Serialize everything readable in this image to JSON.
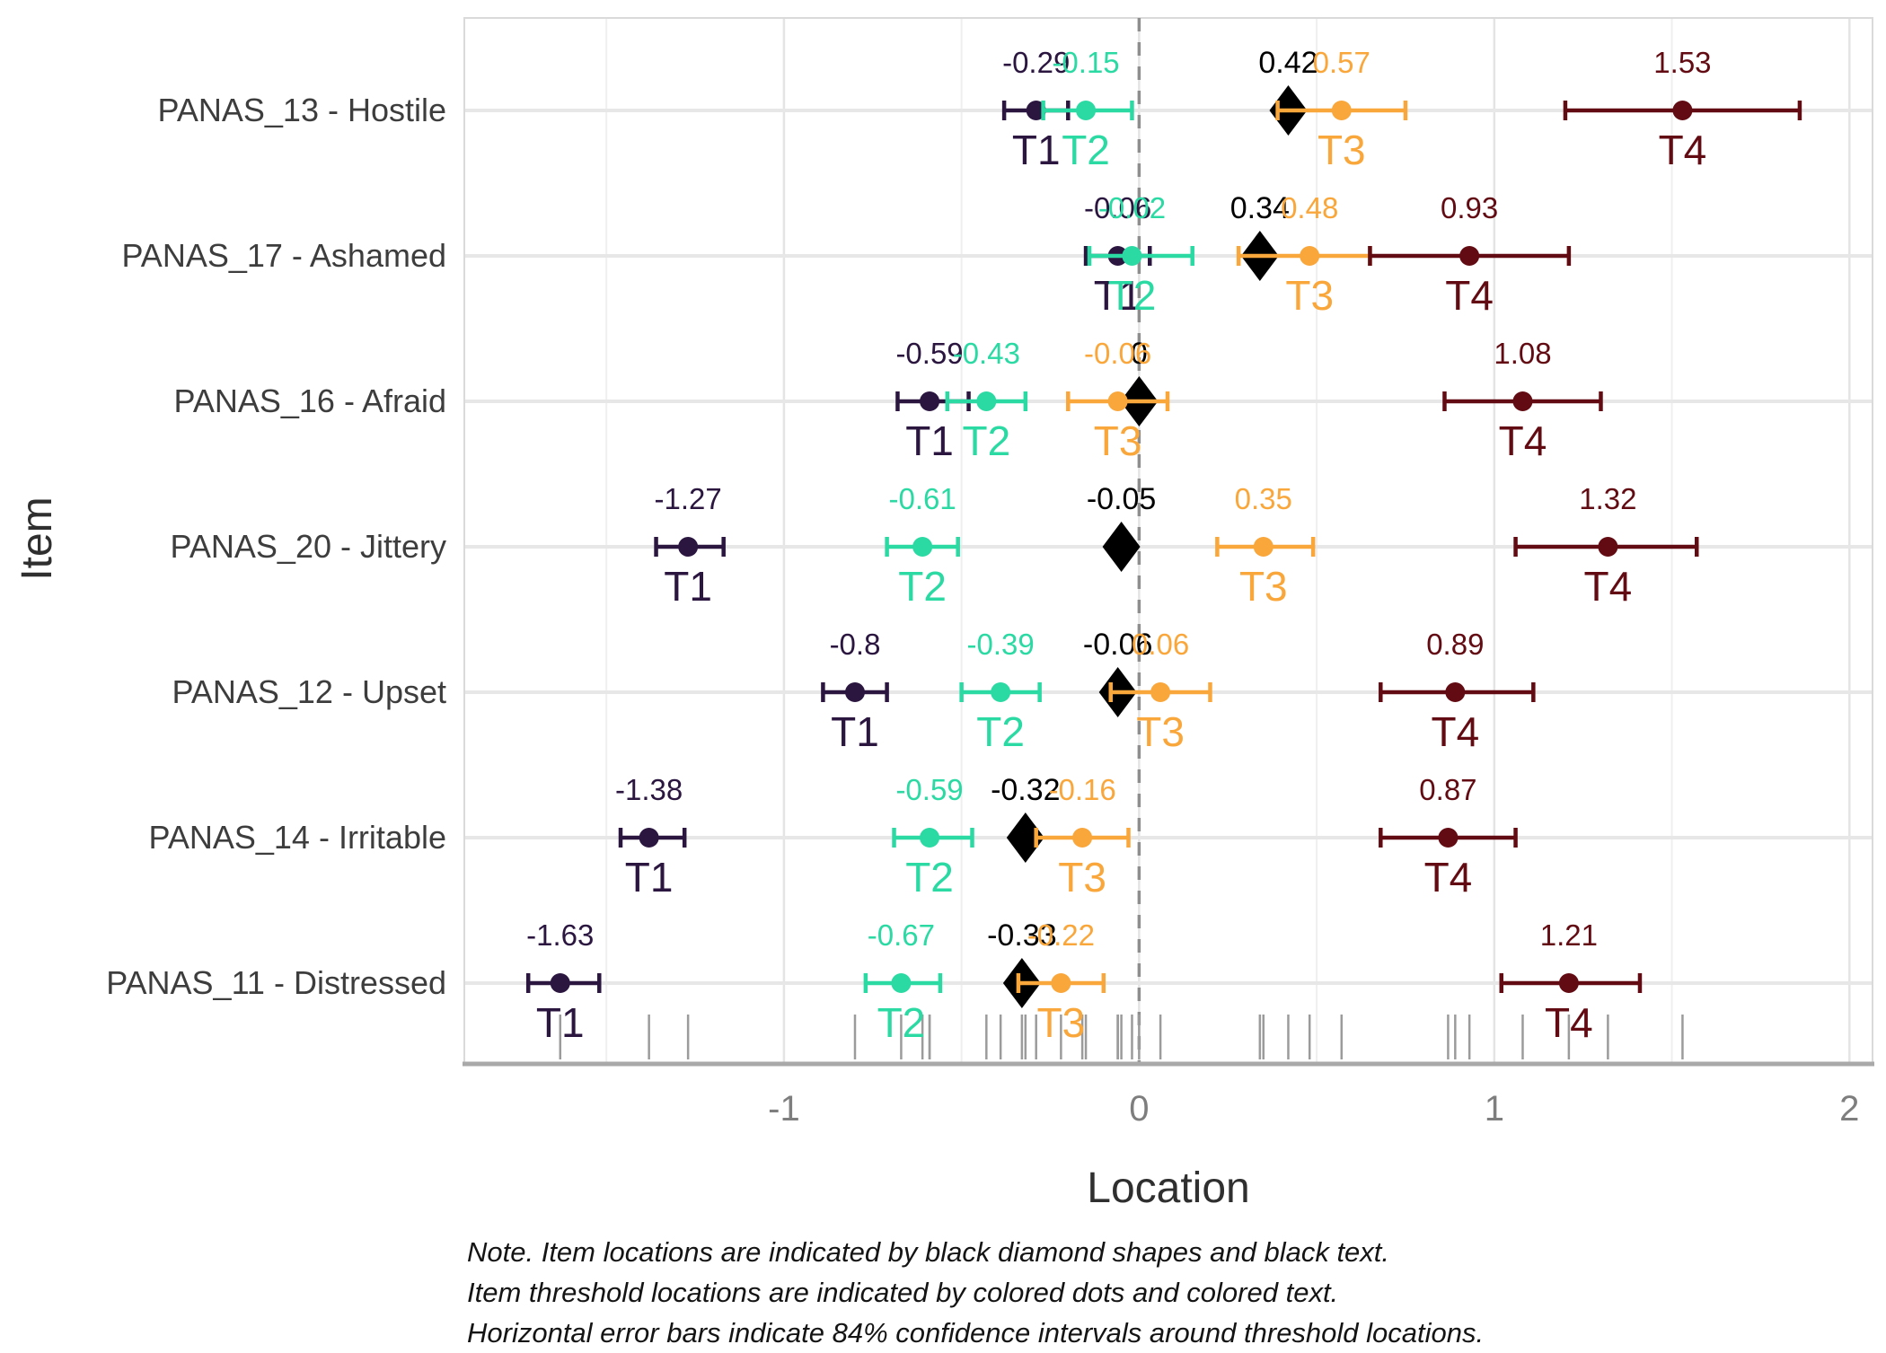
{
  "figure": {
    "x_title": "Location",
    "y_title": "Item",
    "note_lines": [
      "Note. Item locations are indicated by black diamond shapes and black text.",
      "Item threshold locations are indicated by colored dots and colored text.",
      "Horizontal error bars indicate 84% confidence intervals around threshold locations."
    ]
  },
  "colors": {
    "t1": "#2B1640",
    "t2": "#2BD9A3",
    "t3": "#F9A63B",
    "t4": "#620B13",
    "item_black": "#000000",
    "grid_major": "#E4E4E4",
    "grid_minor": "#EFEFEF",
    "row_line": "#E7E7E7",
    "panel_border": "#DADADA",
    "axis_line": "#A9A9A9",
    "dashed_zero": "#8E8E8E",
    "rug": "#9B9B9B",
    "tick_label": "#7E7E7E",
    "item_label": "#3D3D3D"
  },
  "chart_data": {
    "type": "scatter",
    "subtype": "dot-and-errorbar (item/threshold location plot)",
    "title": "",
    "xlabel": "Location",
    "ylabel": "Item",
    "ci_level": "84%",
    "x_axis": {
      "label": "Location",
      "ticks": [
        -1,
        0,
        1,
        2
      ],
      "tick_labels": [
        "-1",
        "0",
        "1",
        "2"
      ],
      "minor_gridlines": [
        -1.5,
        -0.5,
        0.5,
        1.5
      ],
      "range": [
        -1.9,
        2.065
      ],
      "zero_reference_line": 0
    },
    "y_axis": {
      "label": "Item"
    },
    "threshold_names": [
      "T1",
      "T2",
      "T3",
      "T4"
    ],
    "items": [
      {
        "label": "PANAS_13 - Hostile",
        "location": 0.42,
        "location_label": "0.42",
        "thresholds": [
          {
            "name": "T1",
            "value": -0.29,
            "label": "-0.29",
            "ci": [
              -0.38,
              -0.2
            ]
          },
          {
            "name": "T2",
            "value": -0.15,
            "label": "-0.15",
            "ci": [
              -0.27,
              -0.02
            ]
          },
          {
            "name": "T3",
            "value": 0.57,
            "label": "0.57",
            "ci": [
              0.39,
              0.75
            ]
          },
          {
            "name": "T4",
            "value": 1.53,
            "label": "1.53",
            "ci": [
              1.2,
              1.86
            ]
          }
        ]
      },
      {
        "label": "PANAS_17 - Ashamed",
        "location": 0.34,
        "location_label": "0.34",
        "thresholds": [
          {
            "name": "T1",
            "value": -0.06,
            "label": "-0.06",
            "ci": [
              -0.15,
              0.03
            ]
          },
          {
            "name": "T2",
            "value": -0.02,
            "label": "-0.02",
            "ci": [
              -0.14,
              0.15
            ]
          },
          {
            "name": "T3",
            "value": 0.48,
            "label": "0.48",
            "ci": [
              0.28,
              0.65
            ]
          },
          {
            "name": "T4",
            "value": 0.93,
            "label": "0.93",
            "ci": [
              0.65,
              1.21
            ]
          }
        ]
      },
      {
        "label": "PANAS_16 - Afraid",
        "location": 0,
        "location_label": "0",
        "thresholds": [
          {
            "name": "T1",
            "value": -0.59,
            "label": "-0.59",
            "ci": [
              -0.68,
              -0.48
            ]
          },
          {
            "name": "T2",
            "value": -0.43,
            "label": "-0.43",
            "ci": [
              -0.54,
              -0.32
            ]
          },
          {
            "name": "T3",
            "value": -0.06,
            "label": "-0.06",
            "ci": [
              -0.2,
              0.08
            ]
          },
          {
            "name": "T4",
            "value": 1.08,
            "label": "1.08",
            "ci": [
              0.86,
              1.3
            ]
          }
        ]
      },
      {
        "label": "PANAS_20 - Jittery",
        "location": -0.05,
        "location_label": "-0.05",
        "thresholds": [
          {
            "name": "T1",
            "value": -1.27,
            "label": "-1.27",
            "ci": [
              -1.36,
              -1.17
            ]
          },
          {
            "name": "T2",
            "value": -0.61,
            "label": "-0.61",
            "ci": [
              -0.71,
              -0.51
            ]
          },
          {
            "name": "T3",
            "value": 0.35,
            "label": "0.35",
            "ci": [
              0.22,
              0.49
            ]
          },
          {
            "name": "T4",
            "value": 1.32,
            "label": "1.32",
            "ci": [
              1.06,
              1.57
            ]
          }
        ]
      },
      {
        "label": "PANAS_12 - Upset",
        "location": -0.06,
        "location_label": "-0.06",
        "thresholds": [
          {
            "name": "T1",
            "value": -0.8,
            "label": "-0.8",
            "ci": [
              -0.89,
              -0.71
            ]
          },
          {
            "name": "T2",
            "value": -0.39,
            "label": "-0.39",
            "ci": [
              -0.5,
              -0.28
            ]
          },
          {
            "name": "T3",
            "value": 0.06,
            "label": "0.06",
            "ci": [
              -0.08,
              0.2
            ]
          },
          {
            "name": "T4",
            "value": 0.89,
            "label": "0.89",
            "ci": [
              0.68,
              1.11
            ]
          }
        ]
      },
      {
        "label": "PANAS_14 - Irritable",
        "location": -0.32,
        "location_label": "-0.32",
        "thresholds": [
          {
            "name": "T1",
            "value": -1.38,
            "label": "-1.38",
            "ci": [
              -1.46,
              -1.28
            ]
          },
          {
            "name": "T2",
            "value": -0.59,
            "label": "-0.59",
            "ci": [
              -0.69,
              -0.47
            ]
          },
          {
            "name": "T3",
            "value": -0.16,
            "label": "-0.16",
            "ci": [
              -0.29,
              -0.03
            ]
          },
          {
            "name": "T4",
            "value": 0.87,
            "label": "0.87",
            "ci": [
              0.68,
              1.06
            ]
          }
        ]
      },
      {
        "label": "PANAS_11 - Distressed",
        "location": -0.33,
        "location_label": "-0.33",
        "thresholds": [
          {
            "name": "T1",
            "value": -1.63,
            "label": "-1.63",
            "ci": [
              -1.72,
              -1.52
            ]
          },
          {
            "name": "T2",
            "value": -0.67,
            "label": "-0.67",
            "ci": [
              -0.77,
              -0.56
            ]
          },
          {
            "name": "T3",
            "value": -0.22,
            "label": "-0.22",
            "ci": [
              -0.34,
              -0.1
            ]
          },
          {
            "name": "T4",
            "value": 1.21,
            "label": "1.21",
            "ci": [
              1.02,
              1.41
            ]
          }
        ]
      }
    ]
  }
}
